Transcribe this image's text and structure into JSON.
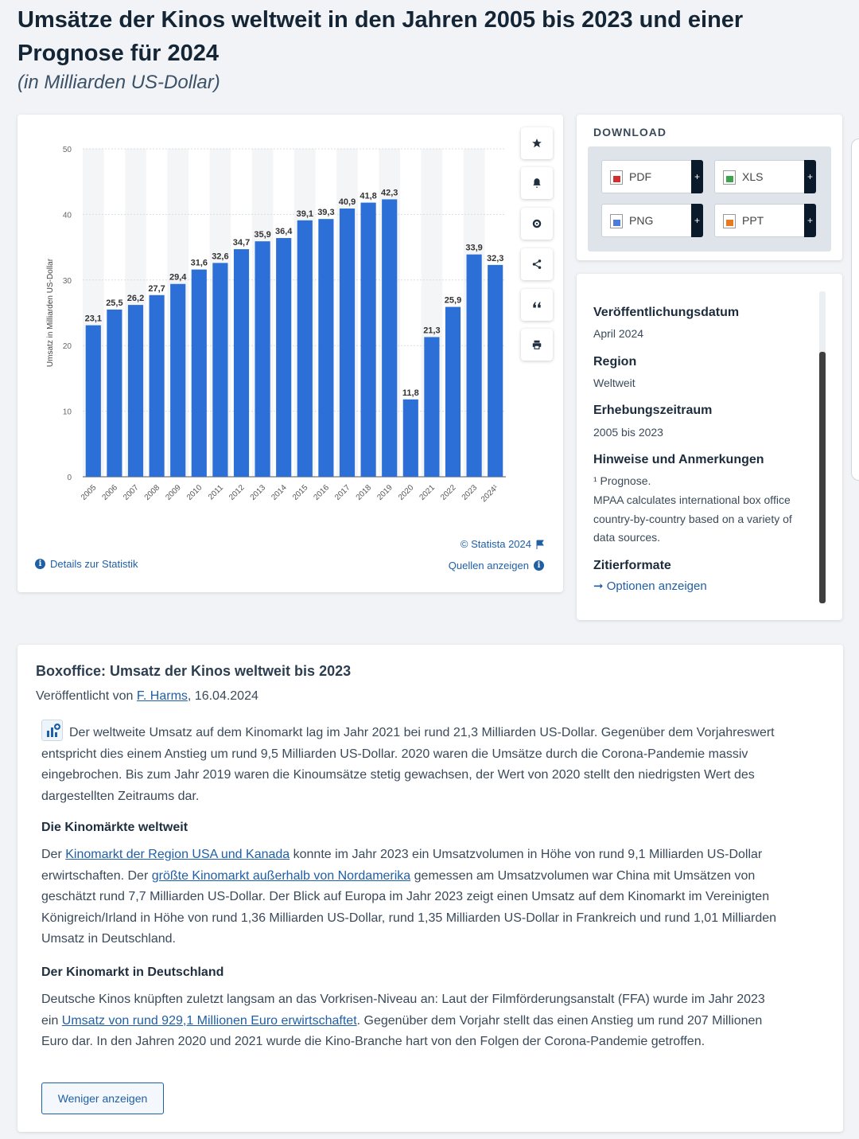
{
  "page": {
    "title": "Umsätze der Kinos weltweit in den Jahren 2005 bis 2023 und einer Prognose für 2024",
    "subtitle": "(in Milliarden US-Dollar)"
  },
  "chart_data": {
    "type": "bar",
    "ylabel": "Umsatz in Milliarden US-Dollar",
    "ylim": [
      0,
      50
    ],
    "yticks": [
      0,
      10,
      20,
      30,
      40,
      50
    ],
    "categories": [
      "2005",
      "2006",
      "2007",
      "2008",
      "2009",
      "2010",
      "2011",
      "2012",
      "2013",
      "2014",
      "2015",
      "2016",
      "2017",
      "2018",
      "2019",
      "2020",
      "2021",
      "2022",
      "2023",
      "2024¹"
    ],
    "values": [
      23.1,
      25.5,
      26.2,
      27.7,
      29.4,
      31.6,
      32.6,
      34.7,
      35.9,
      36.4,
      39.1,
      39.3,
      40.9,
      41.8,
      42.3,
      11.8,
      21.3,
      25.9,
      33.9,
      32.3
    ],
    "labels": [
      "23,1",
      "25,5",
      "26,2",
      "27,7",
      "29,4",
      "31,6",
      "32,6",
      "34,7",
      "35,9",
      "36,4",
      "39,1",
      "39,3",
      "40,9",
      "41,8",
      "42,3",
      "11,8",
      "21,3",
      "25,9",
      "33,9",
      "32,3"
    ],
    "bar_color": "#2c6fd6",
    "grid": true
  },
  "chart_card": {
    "credit": "© Statista 2024",
    "details_link": "Details zur Statistik",
    "sources_link": "Quellen anzeigen",
    "tools": [
      "star-icon",
      "bell-icon",
      "gear-icon",
      "share-icon",
      "quote-icon",
      "print-icon"
    ]
  },
  "download": {
    "title": "DOWNLOAD",
    "buttons": [
      "PDF",
      "XLS",
      "PNG",
      "PPT"
    ],
    "plus": "+"
  },
  "meta": {
    "published_label": "Veröffentlichungsdatum",
    "published_value": "April 2024",
    "region_label": "Region",
    "region_value": "Weltweit",
    "period_label": "Erhebungszeitraum",
    "period_value": "2005 bis 2023",
    "notes_label": "Hinweise und Anmerkungen",
    "notes_value_1": "¹ Prognose.",
    "notes_value_2": "MPAA calculates international box office country-by-country based on a variety of data sources.",
    "cite_label": "Zitierformate",
    "cite_link": "Optionen anzeigen"
  },
  "article": {
    "title": "Boxoffice: Umsatz der Kinos weltweit bis 2023",
    "byline_prefix": "Veröffentlicht von ",
    "author": "F. Harms",
    "byline_date": ", 16.04.2024",
    "p1": "Der weltweite Umsatz auf dem Kinomarkt lag im Jahr 2021 bei rund 21,3 Milliarden US-Dollar. Gegenüber dem Vorjahreswert entspricht dies einem Anstieg um rund 9,5 Milliarden US-Dollar. 2020 waren die Umsätze durch die Corona-Pandemie massiv eingebrochen. Bis zum Jahr 2019 waren die Kinoumsätze stetig gewachsen, der Wert von 2020 stellt den niedrigsten Wert des dargestellten Zeitraums dar.",
    "h2": "Die Kinomärkte weltweit",
    "p2_a": "Der ",
    "p2_link1": "Kinomarkt der Region USA und Kanada",
    "p2_b": " konnte im Jahr 2023 ein Umsatzvolumen in Höhe von rund 9,1 Milliarden US-Dollar erwirtschaften. Der ",
    "p2_link2": "größte Kinomarkt außerhalb von Nordamerika",
    "p2_c": " gemessen am Umsatzvolumen war China mit Umsätzen von geschätzt rund 7,7 Milliarden US-Dollar. Der Blick auf Europa im Jahr 2023 zeigt einen Umsatz auf dem Kinomarkt im Vereinigten Königreich/Irland in Höhe von rund 1,36 Milliarden US-Dollar, rund 1,35 Milliarden US-Dollar in Frankreich und rund 1,01 Milliarden Umsatz in Deutschland.",
    "h3": "Der Kinomarkt in Deutschland",
    "p3_a": "Deutsche Kinos knüpften zuletzt langsam an das Vorkrisen-Niveau an: Laut der Filmförderungsanstalt (FFA) wurde im Jahr 2023 ein ",
    "p3_link": "Umsatz von rund 929,1 Millionen Euro erwirtschaftet",
    "p3_b": ". Gegenüber dem Vorjahr stellt das einen Anstieg um rund 207 Millionen Euro dar. In den Jahren 2020 und 2021 wurde die Kino-Branche hart von den Folgen der Corona-Pandemie getroffen.",
    "less_button": "Weniger anzeigen"
  }
}
